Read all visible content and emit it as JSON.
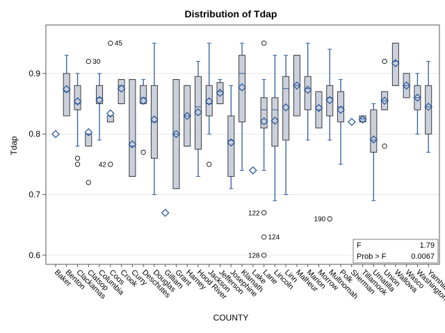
{
  "chart_data": {
    "type": "box",
    "title": "Distribution of Tdap",
    "xlabel": "COUNTY",
    "ylabel": "Tdap",
    "ylim": [
      0.585,
      0.98
    ],
    "yticks": [
      0.6,
      0.7,
      0.8,
      0.9
    ],
    "ytick_labels": [
      "0.6",
      "0.7",
      "0.8",
      "0.9"
    ],
    "grid": true,
    "colors": {
      "box_fill": "#cad0dc",
      "box_stroke": "#3a3a3a",
      "whisker": "#2b5a9c",
      "mean_marker": "#2b5a9c",
      "grid": "#e6e6e6"
    },
    "categories": [
      "Baker",
      "Benton",
      "Clackamas",
      "Clatsop",
      "Columbia",
      "Coos",
      "Crook",
      "Curry",
      "Deschutes",
      "Douglas",
      "Gilliam",
      "Grant",
      "Harney",
      "Hood River",
      "Jackson",
      "Jefferson",
      "Josephine",
      "Klamath",
      "Lake",
      "Lane",
      "Lincoln",
      "Linn",
      "Malheur",
      "Marion",
      "Morrow",
      "Multnomah",
      "Polk",
      "Sherman",
      "Tillamook",
      "Umatilla",
      "Union",
      "Wallowa",
      "Wasco",
      "Washington",
      "Yamhill"
    ],
    "boxes": [
      {
        "min": null,
        "q1": null,
        "median": null,
        "q3": null,
        "max": null,
        "mean": 0.8
      },
      {
        "min": 0.83,
        "q1": 0.83,
        "median": 0.87,
        "q3": 0.9,
        "max": 0.93,
        "mean": 0.874
      },
      {
        "min": 0.78,
        "q1": 0.84,
        "median": 0.85,
        "q3": 0.88,
        "max": 0.9,
        "mean": 0.854
      },
      {
        "min": 0.78,
        "q1": 0.78,
        "median": 0.8,
        "q3": 0.8,
        "max": 0.8,
        "mean": 0.803
      },
      {
        "min": 0.79,
        "q1": 0.85,
        "median": 0.86,
        "q3": 0.88,
        "max": 0.9,
        "mean": 0.856
      },
      {
        "min": 0.82,
        "q1": 0.82,
        "median": 0.83,
        "q3": 0.83,
        "max": 0.83,
        "mean": 0.834
      },
      {
        "min": 0.85,
        "q1": 0.85,
        "median": 0.88,
        "q3": 0.89,
        "max": 0.89,
        "mean": 0.875
      },
      {
        "min": 0.73,
        "q1": 0.73,
        "median": 0.78,
        "q3": 0.89,
        "max": 0.89,
        "mean": 0.783
      },
      {
        "min": 0.85,
        "q1": 0.85,
        "median": 0.86,
        "q3": 0.88,
        "max": 0.89,
        "mean": 0.855
      },
      {
        "min": 0.7,
        "q1": 0.76,
        "median": 0.82,
        "q3": 0.88,
        "max": 0.95,
        "mean": 0.824
      },
      {
        "min": null,
        "q1": null,
        "median": null,
        "q3": null,
        "max": null,
        "mean": 0.67
      },
      {
        "min": 0.71,
        "q1": 0.71,
        "median": 0.8,
        "q3": 0.89,
        "max": 0.89,
        "mean": 0.8
      },
      {
        "min": 0.78,
        "q1": 0.78,
        "median": 0.83,
        "q3": 0.88,
        "max": 0.88,
        "mean": 0.83
      },
      {
        "min": 0.73,
        "q1": 0.775,
        "median": 0.845,
        "q3": 0.895,
        "max": 0.92,
        "mean": 0.836
      },
      {
        "min": 0.8,
        "q1": 0.83,
        "median": 0.85,
        "q3": 0.88,
        "max": 0.95,
        "mean": 0.854
      },
      {
        "min": 0.85,
        "q1": 0.85,
        "median": 0.87,
        "q3": 0.885,
        "max": 0.89,
        "mean": 0.868
      },
      {
        "min": 0.71,
        "q1": 0.73,
        "median": 0.79,
        "q3": 0.83,
        "max": 0.88,
        "mean": 0.786
      },
      {
        "min": 0.74,
        "q1": 0.82,
        "median": 0.9,
        "q3": 0.93,
        "max": 0.95,
        "mean": 0.877
      },
      {
        "min": null,
        "q1": null,
        "median": null,
        "q3": null,
        "max": null,
        "mean": 0.74
      },
      {
        "min": 0.74,
        "q1": 0.81,
        "median": 0.84,
        "q3": 0.86,
        "max": 0.89,
        "mean": 0.821
      },
      {
        "min": 0.69,
        "q1": 0.78,
        "median": 0.84,
        "q3": 0.86,
        "max": 0.93,
        "mean": 0.822
      },
      {
        "min": 0.7,
        "q1": 0.79,
        "median": 0.875,
        "q3": 0.895,
        "max": 0.93,
        "mean": 0.844
      },
      {
        "min": 0.83,
        "q1": 0.83,
        "median": 0.88,
        "q3": 0.93,
        "max": 0.93,
        "mean": 0.88
      },
      {
        "min": 0.79,
        "q1": 0.84,
        "median": 0.875,
        "q3": 0.895,
        "max": 0.95,
        "mean": 0.873
      },
      {
        "min": 0.81,
        "q1": 0.81,
        "median": 0.84,
        "q3": 0.87,
        "max": 0.87,
        "mean": 0.843
      },
      {
        "min": 0.79,
        "q1": 0.83,
        "median": 0.86,
        "q3": 0.88,
        "max": 0.94,
        "mean": 0.856
      },
      {
        "min": 0.75,
        "q1": 0.82,
        "median": 0.845,
        "q3": 0.87,
        "max": 0.89,
        "mean": 0.84
      },
      {
        "min": null,
        "q1": null,
        "median": null,
        "q3": null,
        "max": null,
        "mean": 0.82
      },
      {
        "min": 0.82,
        "q1": 0.82,
        "median": 0.825,
        "q3": 0.83,
        "max": 0.83,
        "mean": 0.824
      },
      {
        "min": 0.69,
        "q1": 0.77,
        "median": 0.79,
        "q3": 0.84,
        "max": 0.85,
        "mean": 0.791
      },
      {
        "min": 0.84,
        "q1": 0.84,
        "median": 0.855,
        "q3": 0.87,
        "max": 0.87,
        "mean": 0.855
      },
      {
        "min": 0.88,
        "q1": 0.88,
        "median": 0.92,
        "q3": 0.95,
        "max": 0.95,
        "mean": 0.917
      },
      {
        "min": 0.86,
        "q1": 0.86,
        "median": 0.88,
        "q3": 0.9,
        "max": 0.9,
        "mean": 0.88
      },
      {
        "min": 0.8,
        "q1": 0.84,
        "median": 0.86,
        "q3": 0.88,
        "max": 0.9,
        "mean": 0.86
      },
      {
        "min": 0.77,
        "q1": 0.8,
        "median": 0.845,
        "q3": 0.88,
        "max": 0.92,
        "mean": 0.845
      }
    ],
    "outliers": [
      {
        "category": "Clackamas",
        "value": 0.76,
        "label": ""
      },
      {
        "category": "Clackamas",
        "value": 0.75,
        "label": ""
      },
      {
        "category": "Clatsop",
        "value": 0.92,
        "label": "30"
      },
      {
        "category": "Clatsop",
        "value": 0.72,
        "label": ""
      },
      {
        "category": "Coos",
        "value": 0.95,
        "label": "45"
      },
      {
        "category": "Coos",
        "value": 0.75,
        "label": "42"
      },
      {
        "category": "Deschutes",
        "value": 0.77,
        "label": ""
      },
      {
        "category": "Jackson",
        "value": 0.75,
        "label": ""
      },
      {
        "category": "Lane",
        "value": 0.95,
        "label": ""
      },
      {
        "category": "Lane",
        "value": 0.67,
        "label": "122"
      },
      {
        "category": "Lane",
        "value": 0.63,
        "label": "124"
      },
      {
        "category": "Lane",
        "value": 0.6,
        "label": "128"
      },
      {
        "category": "Multnomah",
        "value": 0.66,
        "label": "190"
      },
      {
        "category": "Union",
        "value": 0.92,
        "label": ""
      },
      {
        "category": "Union",
        "value": 0.78,
        "label": ""
      }
    ],
    "stats_box": {
      "rows": [
        {
          "label": "F",
          "value": "1.79"
        },
        {
          "label": "Prob > F",
          "value": "0.0067"
        }
      ]
    }
  }
}
